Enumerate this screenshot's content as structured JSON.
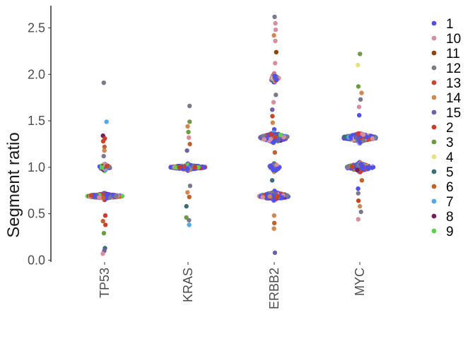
{
  "chart_data": {
    "type": "scatter",
    "subtype": "beeswarm",
    "title": "",
    "xlabel": "",
    "ylabel": "Segment ratio",
    "ylim": [
      -0.02,
      2.74
    ],
    "yticks": [
      0.0,
      0.5,
      1.0,
      1.5,
      2.0,
      2.5
    ],
    "ytick_labels": [
      "0.0",
      "0.5",
      "1.0",
      "1.5",
      "2.0",
      "2.5"
    ],
    "categories": [
      "TP53",
      "KRAS",
      "ERBB2",
      "MYC"
    ],
    "grid": false,
    "legend_position": "right",
    "legend": [
      {
        "label": "1",
        "color": "#5050f0"
      },
      {
        "label": "10",
        "color": "#d4909e"
      },
      {
        "label": "11",
        "color": "#8b4513"
      },
      {
        "label": "12",
        "color": "#7a7a8a"
      },
      {
        "label": "13",
        "color": "#c8452a"
      },
      {
        "label": "14",
        "color": "#cc8855"
      },
      {
        "label": "15",
        "color": "#7060a8"
      },
      {
        "label": "2",
        "color": "#d03a2a"
      },
      {
        "label": "3",
        "color": "#6d9a42"
      },
      {
        "label": "4",
        "color": "#ece082"
      },
      {
        "label": "5",
        "color": "#3d6b78"
      },
      {
        "label": "6",
        "color": "#c0622e"
      },
      {
        "label": "7",
        "color": "#4fa8e8"
      },
      {
        "label": "8",
        "color": "#7a1c5a"
      },
      {
        "label": "9",
        "color": "#5ad24a"
      }
    ],
    "groups": [
      {
        "category": "TP53",
        "clusters": [
          {
            "y": 0.69,
            "n": 260,
            "max_width": 0.42,
            "spread": 0.012
          },
          {
            "y": 1.0,
            "n": 45,
            "max_width": 0.14,
            "spread": 0.015
          }
        ],
        "outliers": [
          {
            "y": 1.91,
            "series": "12"
          },
          {
            "y": 1.49,
            "series": "7"
          },
          {
            "y": 1.34,
            "series": "8"
          },
          {
            "y": 1.31,
            "series": "2"
          },
          {
            "y": 1.28,
            "series": "13"
          },
          {
            "y": 1.22,
            "series": "6"
          },
          {
            "y": 1.18,
            "series": "14"
          },
          {
            "y": 1.12,
            "series": "12"
          },
          {
            "y": 0.48,
            "series": "2"
          },
          {
            "y": 0.42,
            "series": "6"
          },
          {
            "y": 0.38,
            "series": "13"
          },
          {
            "y": 0.29,
            "series": "3"
          },
          {
            "y": 0.13,
            "series": "5"
          },
          {
            "y": 0.1,
            "series": "15"
          },
          {
            "y": 0.07,
            "series": "10"
          }
        ]
      },
      {
        "category": "KRAS",
        "clusters": [
          {
            "y": 1.0,
            "n": 260,
            "max_width": 0.42,
            "spread": 0.012
          }
        ],
        "outliers": [
          {
            "y": 1.66,
            "series": "12"
          },
          {
            "y": 1.49,
            "series": "3"
          },
          {
            "y": 1.44,
            "series": "14"
          },
          {
            "y": 1.38,
            "series": "3"
          },
          {
            "y": 1.32,
            "series": "10"
          },
          {
            "y": 1.25,
            "series": "6"
          },
          {
            "y": 1.18,
            "series": "15"
          },
          {
            "y": 0.8,
            "series": "12"
          },
          {
            "y": 0.73,
            "series": "14"
          },
          {
            "y": 0.68,
            "series": "6"
          },
          {
            "y": 0.58,
            "series": "5"
          },
          {
            "y": 0.46,
            "series": "3"
          },
          {
            "y": 0.43,
            "series": "12"
          },
          {
            "y": 0.38,
            "series": "7"
          }
        ]
      },
      {
        "category": "ERBB2",
        "clusters": [
          {
            "y": 0.69,
            "n": 200,
            "max_width": 0.36,
            "spread": 0.02
          },
          {
            "y": 1.0,
            "n": 50,
            "max_width": 0.14,
            "spread": 0.02
          },
          {
            "y": 1.32,
            "n": 180,
            "max_width": 0.33,
            "spread": 0.025
          },
          {
            "y": 1.96,
            "n": 45,
            "max_width": 0.11,
            "spread": 0.02
          }
        ],
        "outliers": [
          {
            "y": 2.62,
            "series": "12"
          },
          {
            "y": 2.55,
            "series": "10"
          },
          {
            "y": 2.48,
            "series": "10"
          },
          {
            "y": 2.42,
            "series": "14"
          },
          {
            "y": 2.36,
            "series": "10"
          },
          {
            "y": 2.24,
            "series": "11"
          },
          {
            "y": 2.12,
            "series": "10"
          },
          {
            "y": 1.78,
            "series": "12"
          },
          {
            "y": 1.7,
            "series": "10"
          },
          {
            "y": 1.62,
            "series": "15"
          },
          {
            "y": 1.55,
            "series": "13"
          },
          {
            "y": 1.48,
            "series": "14"
          },
          {
            "y": 1.16,
            "series": "6"
          },
          {
            "y": 0.86,
            "series": "5"
          },
          {
            "y": 0.48,
            "series": "14"
          },
          {
            "y": 0.4,
            "series": "6"
          },
          {
            "y": 0.34,
            "series": "14"
          },
          {
            "y": 0.08,
            "series": "15"
          }
        ]
      },
      {
        "category": "MYC",
        "clusters": [
          {
            "y": 1.0,
            "n": 160,
            "max_width": 0.32,
            "spread": 0.02
          },
          {
            "y": 1.32,
            "n": 240,
            "max_width": 0.4,
            "spread": 0.02
          }
        ],
        "outliers": [
          {
            "y": 2.22,
            "series": "3"
          },
          {
            "y": 2.1,
            "series": "4"
          },
          {
            "y": 1.87,
            "series": "3"
          },
          {
            "y": 1.8,
            "series": "14"
          },
          {
            "y": 1.73,
            "series": "12"
          },
          {
            "y": 1.65,
            "series": "10"
          },
          {
            "y": 1.56,
            "series": "1"
          },
          {
            "y": 0.86,
            "series": "6"
          },
          {
            "y": 0.77,
            "series": "1"
          },
          {
            "y": 0.72,
            "series": "12"
          },
          {
            "y": 0.64,
            "series": "13"
          },
          {
            "y": 0.58,
            "series": "14"
          },
          {
            "y": 0.52,
            "series": "12"
          },
          {
            "y": 0.44,
            "series": "10"
          }
        ]
      }
    ]
  }
}
